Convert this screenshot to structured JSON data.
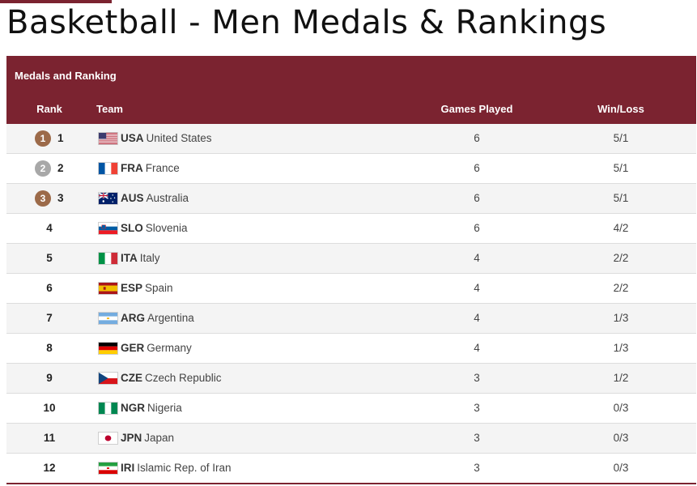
{
  "page": {
    "title": "Basketball - Men Medals & Rankings"
  },
  "table": {
    "caption": "Medals and Ranking",
    "columns": {
      "rank": "Rank",
      "team": "Team",
      "games": "Games Played",
      "winloss": "Win/Loss"
    },
    "rows": [
      {
        "rank": "1",
        "medal": "gold",
        "medal_text": "1",
        "code": "USA",
        "name": "United States",
        "games": "6",
        "winloss": "5/1",
        "flag": "usa"
      },
      {
        "rank": "2",
        "medal": "silver",
        "medal_text": "2",
        "code": "FRA",
        "name": "France",
        "games": "6",
        "winloss": "5/1",
        "flag": "fra"
      },
      {
        "rank": "3",
        "medal": "bronze",
        "medal_text": "3",
        "code": "AUS",
        "name": "Australia",
        "games": "6",
        "winloss": "5/1",
        "flag": "aus"
      },
      {
        "rank": "4",
        "medal": null,
        "code": "SLO",
        "name": "Slovenia",
        "games": "6",
        "winloss": "4/2",
        "flag": "slo"
      },
      {
        "rank": "5",
        "medal": null,
        "code": "ITA",
        "name": "Italy",
        "games": "4",
        "winloss": "2/2",
        "flag": "ita"
      },
      {
        "rank": "6",
        "medal": null,
        "code": "ESP",
        "name": "Spain",
        "games": "4",
        "winloss": "2/2",
        "flag": "esp"
      },
      {
        "rank": "7",
        "medal": null,
        "code": "ARG",
        "name": "Argentina",
        "games": "4",
        "winloss": "1/3",
        "flag": "arg"
      },
      {
        "rank": "8",
        "medal": null,
        "code": "GER",
        "name": "Germany",
        "games": "4",
        "winloss": "1/3",
        "flag": "ger"
      },
      {
        "rank": "9",
        "medal": null,
        "code": "CZE",
        "name": "Czech Republic",
        "games": "3",
        "winloss": "1/2",
        "flag": "cze"
      },
      {
        "rank": "10",
        "medal": null,
        "code": "NGR",
        "name": "Nigeria",
        "games": "3",
        "winloss": "0/3",
        "flag": "ngr"
      },
      {
        "rank": "11",
        "medal": null,
        "code": "JPN",
        "name": "Japan",
        "games": "3",
        "winloss": "0/3",
        "flag": "jpn"
      },
      {
        "rank": "12",
        "medal": null,
        "code": "IRI",
        "name": "Islamic Rep. of Iran",
        "games": "3",
        "winloss": "0/3",
        "flag": "iri"
      }
    ]
  },
  "colors": {
    "header_bg": "#7b2330",
    "medal_gold": "#9c6a49",
    "medal_silver": "#a8a8a8",
    "medal_bronze": "#9c6a49"
  }
}
